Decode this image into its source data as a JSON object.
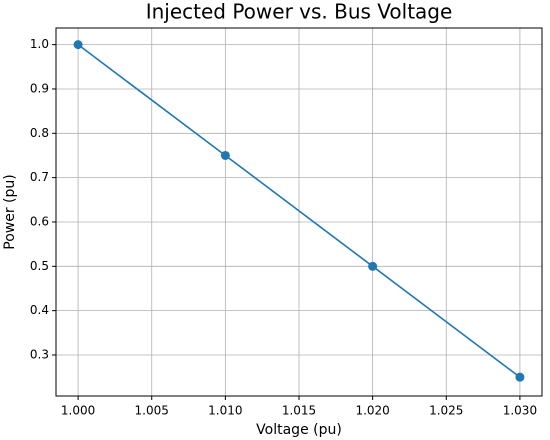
{
  "chart_data": {
    "type": "line",
    "title": "Injected Power vs. Bus Voltage",
    "x_label": "Voltage (pu)",
    "y_label": "Power (pu)",
    "x": [
      1.0,
      1.01,
      1.02,
      1.03
    ],
    "series": [
      {
        "color": "#1f77b4",
        "values": [
          1.0,
          0.75,
          0.5,
          0.25
        ]
      }
    ],
    "xlim": [
      0.9985,
      1.0315
    ],
    "ylim": [
      0.2075,
      1.0375
    ],
    "xticks": [
      {
        "value": 1.0,
        "label": "1.000"
      },
      {
        "value": 1.005,
        "label": "1.005"
      },
      {
        "value": 1.01,
        "label": "1.010"
      },
      {
        "value": 1.015,
        "label": "1.015"
      },
      {
        "value": 1.02,
        "label": "1.020"
      },
      {
        "value": 1.025,
        "label": "1.025"
      },
      {
        "value": 1.03,
        "label": "1.030"
      }
    ],
    "yticks": [
      0.3,
      0.4,
      0.5,
      0.6,
      0.7,
      0.8,
      0.9,
      {
        "value": 1.0,
        "label": "1.0"
      }
    ],
    "grid": true,
    "marker": "circle"
  }
}
